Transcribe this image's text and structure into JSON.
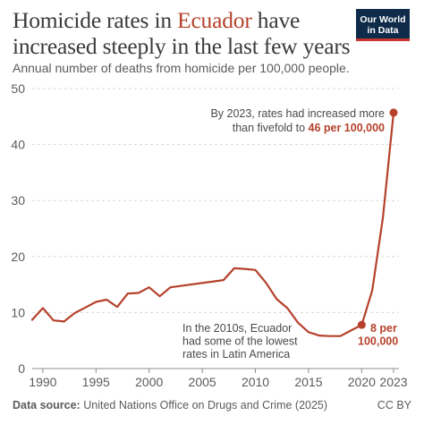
{
  "header": {
    "title_before": "Homicide rates in ",
    "title_highlight": "Ecuador",
    "title_after": " have increased steeply in the last few years",
    "subtitle": "Annual number of deaths from homicide per 100,000 people.",
    "logo_line1": "Our World",
    "logo_line2": "in Data"
  },
  "footer": {
    "source_label": "Data source:",
    "source_text": "United Nations Office on Drugs and Crime (2025)",
    "license": "CC BY"
  },
  "colors": {
    "line": "#b5412b",
    "grid": "#d9d9d9",
    "text": "#5b5b5b"
  },
  "chart_data": {
    "type": "line",
    "title": "Homicide rates in Ecuador have increased steeply in the last few years",
    "subtitle": "Annual number of deaths from homicide per 100,000 people.",
    "xlim": [
      1989,
      2023
    ],
    "ylim": [
      0,
      50
    ],
    "yticks": [
      0,
      10,
      20,
      30,
      40,
      50
    ],
    "xticks": [
      1990,
      1995,
      2000,
      2005,
      2010,
      2015,
      2020,
      2023
    ],
    "grid": "horizontal-dashed",
    "series": [
      {
        "x": [
          1989,
          1990,
          1991,
          1992,
          1993,
          1994,
          1995,
          1996,
          1997,
          1998,
          1999,
          2000,
          2001,
          2002,
          2007,
          2008,
          2009,
          2010,
          2011,
          2012,
          2013,
          2014,
          2015,
          2016,
          2017,
          2018,
          2019,
          2020,
          2021,
          2022,
          2023
        ],
        "y": [
          8.7,
          10.8,
          8.6,
          8.4,
          9.9,
          10.9,
          11.9,
          12.3,
          11.0,
          13.4,
          13.5,
          14.5,
          12.9,
          14.5,
          15.8,
          17.9,
          17.8,
          17.6,
          15.3,
          12.4,
          10.8,
          8.2,
          6.5,
          5.9,
          5.8,
          5.8,
          6.8,
          7.8,
          14.0,
          27.0,
          45.7
        ]
      }
    ],
    "annotations": [
      {
        "name": "annotation-2023",
        "text_before": "By 2023, rates had increased more than fivefold to ",
        "text_highlight": "46 per 100,000",
        "x": 2023,
        "y": 45.7
      },
      {
        "name": "annotation-2010s",
        "text": "In the 2010s, Ecuador had some of the lowest rates in Latin America"
      },
      {
        "name": "annotation-2020",
        "text": "8 per 100,000",
        "x": 2020,
        "y": 7.8
      }
    ]
  }
}
